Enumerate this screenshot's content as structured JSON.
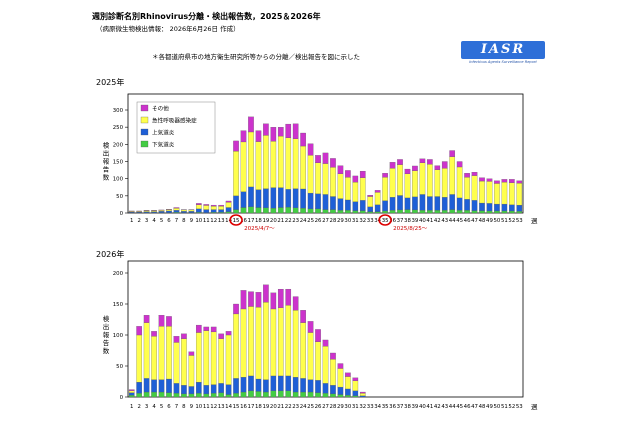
{
  "header": {
    "title": "週別診断名別Rhinovirus分離・検出報告数，2025＆2026年",
    "subtitle": "（病原微生物検出情報： 2026年6月26日 作成）",
    "note": "＊各都道府県市の地方衛生研究所等からの分離／検出報告を図に示した"
  },
  "logo": {
    "text": "IASR",
    "tagline": "Infectious Agents Surveillance Report"
  },
  "colors": {
    "other": "#cc33cc",
    "respiratory": "#ffff4d",
    "upper": "#1f5fd6",
    "lower": "#44cc44"
  },
  "chart_data": [
    {
      "type": "bar",
      "stacked": true,
      "year_label": "2025年",
      "ylabel": "検出報告数",
      "xlabel": "週",
      "ylim": [
        0,
        300
      ],
      "yticks": [
        0,
        50,
        100,
        150,
        200,
        250,
        300
      ],
      "legend": [
        "その他",
        "急性呼吸器感染症",
        "上気道炎",
        "下気道炎"
      ],
      "legend_position": "top-left",
      "categories": [
        "1",
        "2",
        "3",
        "4",
        "5",
        "6",
        "7",
        "8",
        "9",
        "10",
        "11",
        "12",
        "13",
        "14",
        "15",
        "16",
        "17",
        "18",
        "19",
        "20",
        "21",
        "22",
        "23",
        "24",
        "25",
        "26",
        "27",
        "28",
        "29",
        "30",
        "31",
        "32",
        "33",
        "34",
        "35",
        "36",
        "37",
        "38",
        "39",
        "40",
        "41",
        "42",
        "43",
        "44",
        "45",
        "46",
        "47",
        "48",
        "49",
        "50",
        "51",
        "52",
        "53"
      ],
      "series": [
        {
          "name": "下気道炎",
          "values": [
            1,
            1,
            1,
            1,
            1,
            1,
            2,
            1,
            1,
            2,
            1,
            2,
            2,
            4,
            10,
            16,
            18,
            16,
            15,
            14,
            16,
            17,
            15,
            14,
            12,
            12,
            10,
            10,
            8,
            8,
            7,
            7,
            4,
            4,
            6,
            8,
            9,
            10,
            9,
            8,
            8,
            8,
            8,
            10,
            8,
            8,
            7,
            7,
            6,
            6,
            6,
            6,
            5
          ]
        },
        {
          "name": "上気道炎",
          "values": [
            2,
            2,
            3,
            3,
            4,
            5,
            6,
            4,
            4,
            10,
            9,
            8,
            8,
            12,
            40,
            46,
            58,
            52,
            56,
            60,
            58,
            52,
            56,
            56,
            46,
            44,
            44,
            38,
            34,
            30,
            26,
            30,
            14,
            20,
            30,
            38,
            42,
            34,
            38,
            46,
            40,
            40,
            38,
            44,
            36,
            32,
            30,
            22,
            22,
            20,
            20,
            18,
            18
          ]
        },
        {
          "name": "急性呼吸器感染症",
          "values": [
            2,
            2,
            3,
            3,
            3,
            4,
            6,
            4,
            4,
            12,
            12,
            10,
            10,
            15,
            130,
            145,
            160,
            140,
            155,
            135,
            150,
            150,
            145,
            125,
            110,
            90,
            90,
            85,
            72,
            66,
            57,
            66,
            30,
            36,
            68,
            84,
            90,
            70,
            76,
            92,
            94,
            78,
            84,
            110,
            90,
            64,
            72,
            64,
            64,
            60,
            64,
            64,
            64
          ]
        },
        {
          "name": "その他",
          "values": [
            1,
            1,
            1,
            1,
            1,
            1,
            2,
            1,
            1,
            4,
            3,
            3,
            3,
            4,
            30,
            33,
            44,
            32,
            34,
            41,
            26,
            40,
            44,
            38,
            34,
            22,
            31,
            26,
            24,
            20,
            18,
            19,
            4,
            6,
            12,
            18,
            15,
            14,
            14,
            12,
            14,
            12,
            20,
            18,
            16,
            12,
            10,
            10,
            8,
            8,
            8,
            10,
            7
          ]
        }
      ],
      "annotations": [
        {
          "week": "15",
          "text": "2025/4/7〜"
        },
        {
          "week": "35",
          "text": "2025/8/25〜"
        }
      ]
    },
    {
      "type": "bar",
      "stacked": true,
      "year_label": "2026年",
      "ylabel": "検出報告数",
      "xlabel": "週",
      "ylim": [
        0,
        200
      ],
      "yticks": [
        0,
        50,
        100,
        150,
        200
      ],
      "categories": [
        "1",
        "2",
        "3",
        "4",
        "5",
        "6",
        "7",
        "8",
        "9",
        "10",
        "11",
        "12",
        "13",
        "14",
        "15",
        "16",
        "17",
        "18",
        "19",
        "20",
        "21",
        "22",
        "23",
        "24",
        "25",
        "26",
        "27",
        "28",
        "29",
        "30",
        "31",
        "32",
        "33",
        "34",
        "35",
        "36",
        "37",
        "38",
        "39",
        "40",
        "41",
        "42",
        "43",
        "44",
        "45",
        "46",
        "47",
        "48",
        "49",
        "50",
        "51",
        "52",
        "53"
      ],
      "series": [
        {
          "name": "下気道炎",
          "values": [
            3,
            6,
            8,
            8,
            8,
            7,
            6,
            5,
            5,
            6,
            5,
            6,
            7,
            4,
            6,
            8,
            10,
            9,
            8,
            10,
            10,
            10,
            8,
            8,
            8,
            7,
            6,
            5,
            4,
            3,
            2,
            0,
            0,
            0,
            0,
            0,
            0,
            0,
            0,
            0,
            0,
            0,
            0,
            0,
            0,
            0,
            0,
            0,
            0,
            0,
            0,
            0,
            0
          ]
        },
        {
          "name": "上気道炎",
          "values": [
            4,
            18,
            22,
            20,
            20,
            22,
            16,
            14,
            12,
            18,
            14,
            14,
            15,
            16,
            24,
            24,
            24,
            20,
            20,
            24,
            24,
            24,
            24,
            22,
            20,
            20,
            16,
            14,
            12,
            10,
            8,
            2,
            0,
            0,
            0,
            0,
            0,
            0,
            0,
            0,
            0,
            0,
            0,
            0,
            0,
            0,
            0,
            0,
            0,
            0,
            0,
            0,
            0
          ]
        },
        {
          "name": "急性呼吸器感染症",
          "values": [
            3,
            76,
            90,
            70,
            86,
            85,
            66,
            75,
            50,
            80,
            88,
            85,
            72,
            80,
            104,
            110,
            112,
            116,
            125,
            108,
            110,
            114,
            108,
            90,
            76,
            62,
            60,
            42,
            30,
            20,
            16,
            4,
            0,
            0,
            0,
            0,
            0,
            0,
            0,
            0,
            0,
            0,
            0,
            0,
            0,
            0,
            0,
            0,
            0,
            0,
            0,
            0,
            0
          ]
        },
        {
          "name": "その他",
          "values": [
            2,
            14,
            12,
            8,
            18,
            16,
            10,
            8,
            6,
            12,
            6,
            8,
            8,
            6,
            16,
            30,
            24,
            24,
            28,
            26,
            30,
            26,
            22,
            20,
            18,
            20,
            10,
            10,
            8,
            6,
            5,
            2,
            0,
            0,
            0,
            0,
            0,
            0,
            0,
            0,
            0,
            0,
            0,
            0,
            0,
            0,
            0,
            0,
            0,
            0,
            0,
            0,
            0
          ]
        }
      ]
    }
  ]
}
